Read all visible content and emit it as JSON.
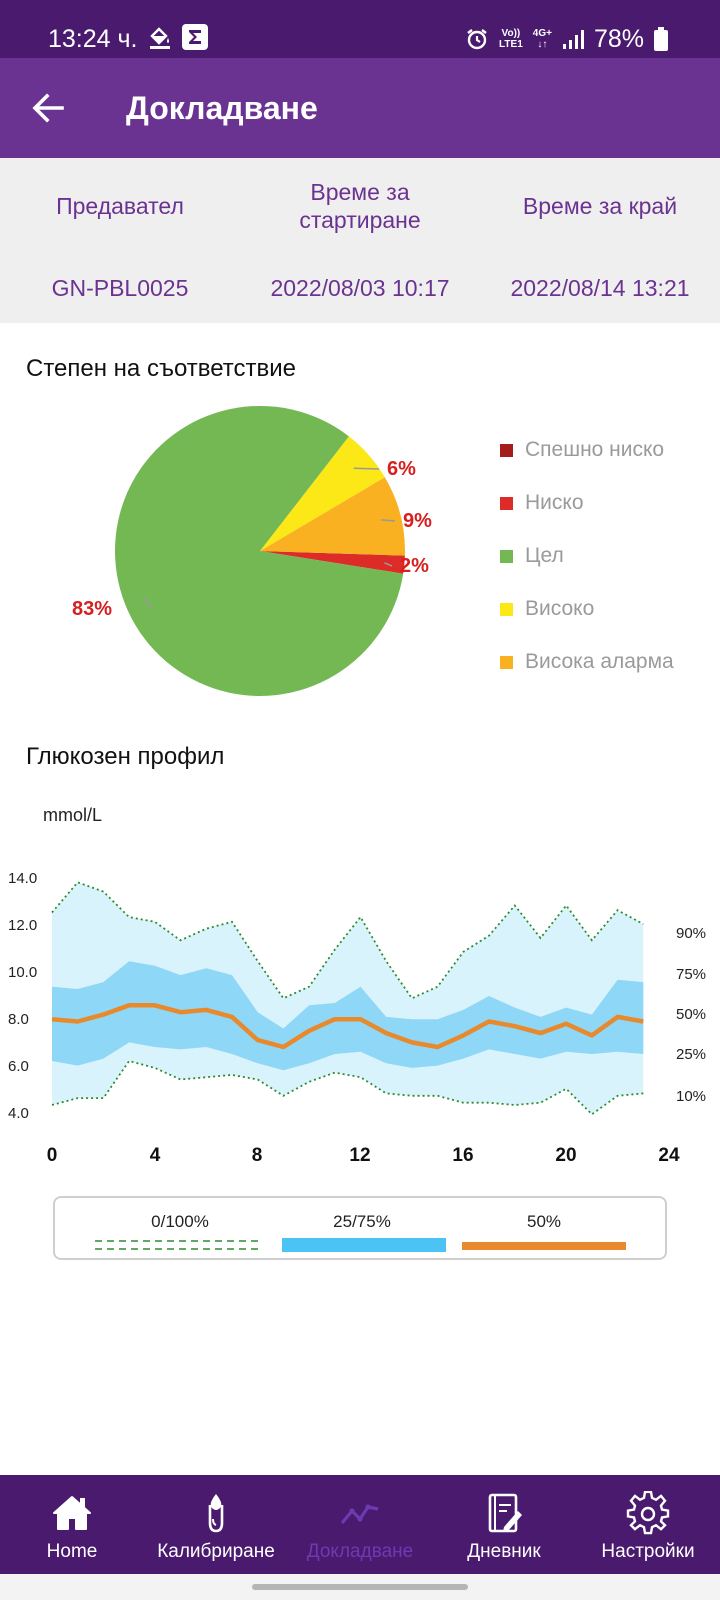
{
  "status_bar": {
    "time": "13:24 ч.",
    "network_top": "Vo))",
    "network_bottom": "LTE1",
    "net_type": "4G+",
    "battery": "78%"
  },
  "app_bar": {
    "title": "Докладване"
  },
  "info": {
    "headers": [
      "Предавател",
      "Време за стартиране",
      "Време за край"
    ],
    "values": [
      "GN-PBL0025",
      "2022/08/03 10:17",
      "2022/08/14 13:21"
    ]
  },
  "compliance": {
    "title": "Степен на съответствие",
    "legend": [
      {
        "label": "Спешно ниско",
        "color": "#a51c1c"
      },
      {
        "label": "Ниско",
        "color": "#dd2b28"
      },
      {
        "label": "Цел",
        "color": "#74b854"
      },
      {
        "label": "Високо",
        "color": "#fbe816"
      },
      {
        "label": "Висока аларма",
        "color": "#f9b121"
      }
    ]
  },
  "chart_data": [
    {
      "type": "pie",
      "title": "Степен на съответствие",
      "slices": [
        {
          "label": "Спешно ниско",
          "value": 0,
          "color": "#a51c1c"
        },
        {
          "label": "Ниско",
          "value": 2,
          "color": "#dd2b28",
          "text": "2%"
        },
        {
          "label": "Цел",
          "value": 83,
          "color": "#74b854",
          "text": "83%"
        },
        {
          "label": "Високо",
          "value": 6,
          "color": "#fbe816",
          "text": "6%"
        },
        {
          "label": "Висока аларма",
          "value": 9,
          "color": "#f9b121",
          "text": "9%"
        }
      ]
    },
    {
      "type": "area",
      "title": "Глюкозен профил",
      "ylabel": "mmol/L",
      "ylim": [
        4,
        14
      ],
      "yticks": [
        "4.0",
        "6.0",
        "8.0",
        "10.0",
        "12.0",
        "14.0"
      ],
      "xlim": [
        0,
        24
      ],
      "xticks": [
        "0",
        "4",
        "8",
        "12",
        "16",
        "20",
        "24"
      ],
      "percentile_labels": [
        "90%",
        "75%",
        "50%",
        "25%",
        "10%"
      ],
      "x": [
        0,
        1,
        2,
        3,
        4,
        5,
        6,
        7,
        8,
        9,
        10,
        11,
        12,
        13,
        14,
        15,
        16,
        17,
        18,
        19,
        20,
        21,
        22,
        23
      ],
      "series": [
        {
          "name": "0/100%",
          "values": [
            12.6,
            13.9,
            13.5,
            12.4,
            12.2,
            11.4,
            11.9,
            12.2,
            10.5,
            8.9,
            9.4,
            11.0,
            12.4,
            10.5,
            8.9,
            9.4,
            10.9,
            11.6,
            12.9,
            11.5,
            12.9,
            11.4,
            12.7,
            12.1
          ]
        },
        {
          "name": "75%",
          "values": [
            9.4,
            9.3,
            9.6,
            10.5,
            10.3,
            9.9,
            10.2,
            9.9,
            8.3,
            7.6,
            8.6,
            8.7,
            9.4,
            8.1,
            8.0,
            8.0,
            8.4,
            9.0,
            8.5,
            8.1,
            8.5,
            8.2,
            9.7,
            9.6
          ]
        },
        {
          "name": "50%",
          "values": [
            8.0,
            7.9,
            8.2,
            8.6,
            8.6,
            8.3,
            8.4,
            8.1,
            7.1,
            6.8,
            7.5,
            8.0,
            8.0,
            7.4,
            7.0,
            6.8,
            7.3,
            7.9,
            7.7,
            7.4,
            7.8,
            7.3,
            8.1,
            7.9
          ]
        },
        {
          "name": "25%",
          "values": [
            6.2,
            6.0,
            6.3,
            7.0,
            6.8,
            6.7,
            6.8,
            6.5,
            6.1,
            5.8,
            6.1,
            6.5,
            6.6,
            6.1,
            5.9,
            6.0,
            6.3,
            6.7,
            6.5,
            6.3,
            6.6,
            6.5,
            6.6,
            6.5
          ]
        },
        {
          "name": "0/100%",
          "values": [
            4.3,
            4.6,
            4.6,
            6.2,
            5.9,
            5.4,
            5.5,
            5.6,
            5.4,
            4.7,
            5.3,
            5.7,
            5.5,
            4.8,
            4.7,
            4.7,
            4.4,
            4.4,
            4.3,
            4.4,
            5.0,
            3.9,
            4.7,
            4.8
          ]
        }
      ]
    }
  ],
  "profile": {
    "title": "Глюкозен профил",
    "unit": "mmol/L",
    "legend": [
      {
        "label": "0/100%",
        "color": "#2e8b2e"
      },
      {
        "label": "25/75%",
        "color": "#4cc3f5"
      },
      {
        "label": "50%",
        "color": "#e8892b"
      }
    ]
  },
  "bottom_nav": {
    "items": [
      {
        "label": "Home",
        "icon": "home-icon"
      },
      {
        "label": "Калибриране",
        "icon": "blood-drop-icon"
      },
      {
        "label": "Докладване",
        "icon": "trend-line-icon",
        "active": true
      },
      {
        "label": "Дневник",
        "icon": "notebook-icon"
      },
      {
        "label": "Настройки",
        "icon": "gear-icon"
      }
    ]
  }
}
